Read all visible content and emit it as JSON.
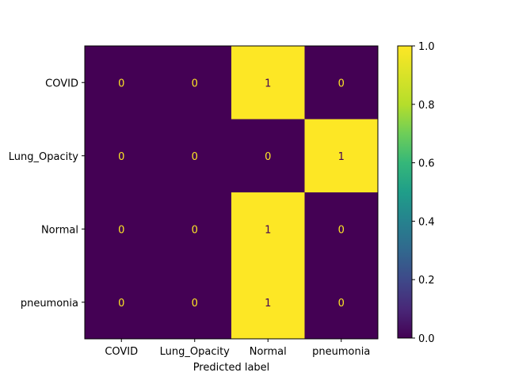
{
  "chart_data": {
    "type": "heatmap",
    "title": "",
    "xlabel": "Predicted label",
    "ylabel": "",
    "x_categories": [
      "COVID",
      "Lung_Opacity",
      "Normal",
      "pneumonia"
    ],
    "y_categories": [
      "COVID",
      "Lung_Opacity",
      "Normal",
      "pneumonia"
    ],
    "values": [
      [
        0,
        0,
        1,
        0
      ],
      [
        0,
        0,
        0,
        1
      ],
      [
        0,
        0,
        1,
        0
      ],
      [
        0,
        0,
        1,
        0
      ]
    ],
    "colorbar": {
      "min": 0.0,
      "max": 1.0,
      "ticks": [
        "0.0",
        "0.2",
        "0.4",
        "0.6",
        "0.8",
        "1.0"
      ],
      "colormap": "viridis"
    },
    "colors": {
      "low": "#440154",
      "high": "#fde725",
      "text_on_low": "#fde725",
      "text_on_high": "#440154"
    }
  }
}
